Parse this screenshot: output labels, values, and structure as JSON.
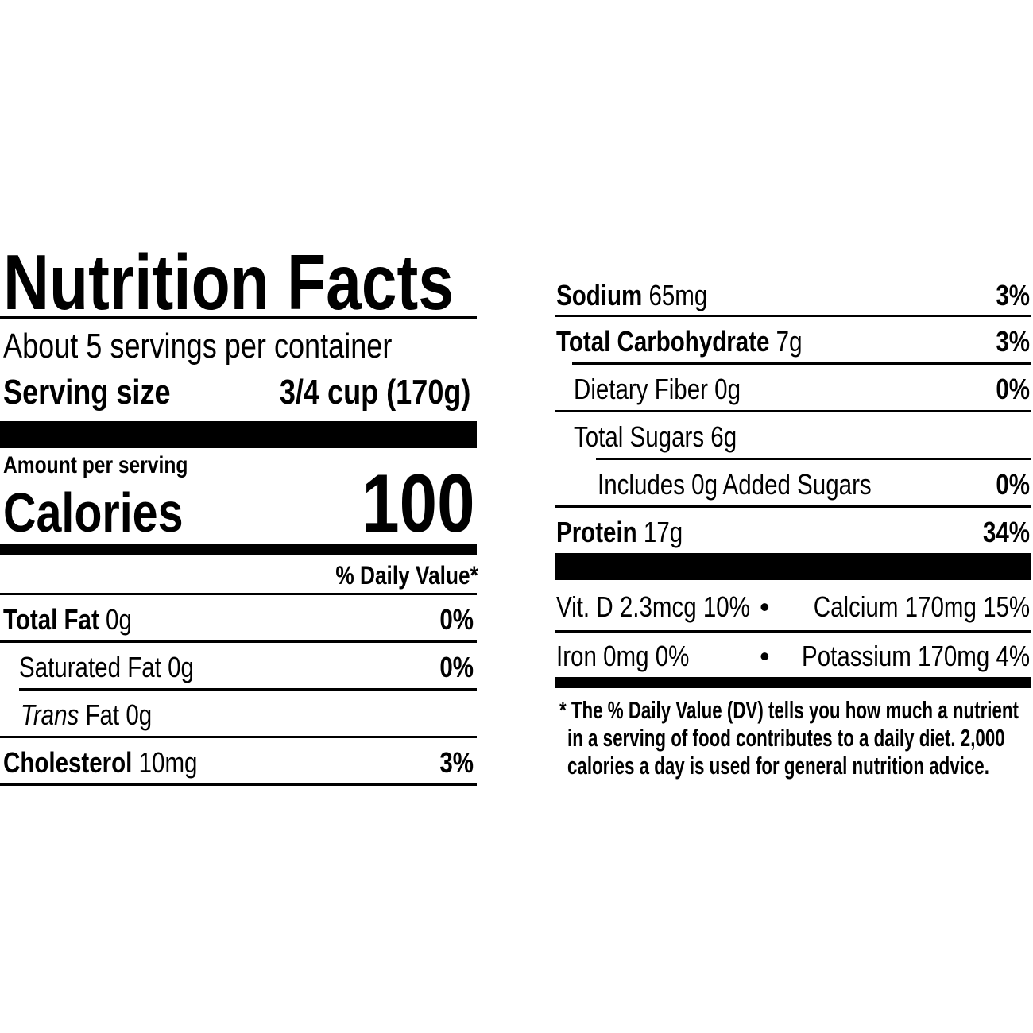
{
  "title": "Nutrition Facts",
  "servings_per_container": "About 5 servings per container",
  "serving_size": {
    "label": "Serving size",
    "value": "3/4 cup (170g)"
  },
  "amount_per_serving": "Amount per serving",
  "calories": {
    "label": "Calories",
    "value": "100"
  },
  "daily_value_header": "% Daily Value*",
  "left_nutrients": [
    {
      "name": "Total Fat",
      "amount": "0g",
      "dv": "0%"
    },
    {
      "name": "Saturated Fat",
      "amount": "0g",
      "dv": "0%"
    },
    {
      "name": "Trans",
      "name_suffix": "Fat",
      "amount": "0g",
      "dv": ""
    },
    {
      "name": "Cholesterol",
      "amount": "10mg",
      "dv": "3%"
    }
  ],
  "right_nutrients": [
    {
      "name": "Sodium",
      "amount": "65mg",
      "dv": "3%"
    },
    {
      "name": "Total Carbohydrate",
      "amount": "7g",
      "dv": "3%"
    },
    {
      "name": "Dietary Fiber",
      "amount": "0g",
      "dv": "0%"
    },
    {
      "name": "Total Sugars",
      "amount": "6g",
      "dv": ""
    },
    {
      "name": "Includes 0g Added Sugars",
      "amount": "",
      "dv": "0%"
    },
    {
      "name": "Protein",
      "amount": "17g",
      "dv": "34%"
    }
  ],
  "vitamins": {
    "row1_left": "Vit. D 2.3mcg 10%",
    "row1_right": "Calcium 170mg 15%",
    "row2_left": "Iron 0mg 0%",
    "row2_right": "Potassium 170mg 4%",
    "bullet": "•"
  },
  "footnote": {
    "line1": "* The % Daily Value (DV) tells you how much a nutrient",
    "line2": "in a serving of food contributes to a daily diet. 2,000",
    "line3": "calories a day is used for general nutrition advice."
  }
}
